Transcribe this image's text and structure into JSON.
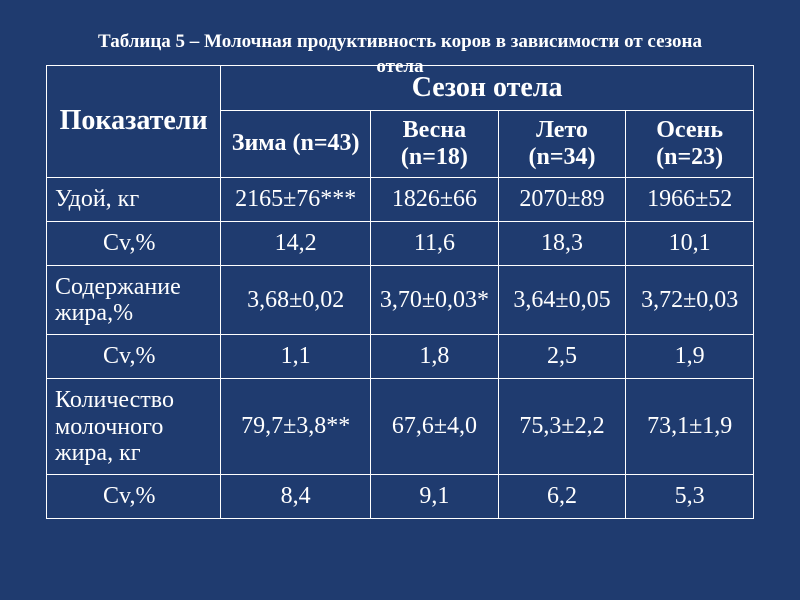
{
  "title": {
    "line1": "Таблица 5 – Молочная продуктивность коров в зависимости от сезона",
    "line2": "отела"
  },
  "table": {
    "row_header_label": "Показатели",
    "super_header": "Сезон отела",
    "seasons": [
      {
        "label": "Зима (n=43)"
      },
      {
        "label": "Весна (n=18)"
      },
      {
        "label": "Лето (n=34)"
      },
      {
        "label": "Осень (n=23)"
      }
    ],
    "rows": [
      {
        "label": "Удой, кг",
        "cells": [
          "2165±76***",
          "1826±66",
          "2070±89",
          "1966±52"
        ]
      },
      {
        "label": "Cv,%",
        "is_cv": true,
        "cells": [
          "14,2",
          "11,6",
          "18,3",
          "10,1"
        ]
      },
      {
        "label": "Содержание жира,%",
        "cells": [
          "3,68±0,02",
          "3,70±0,03*",
          "3,64±0,05",
          "3,72±0,03"
        ]
      },
      {
        "label": "Cv,%",
        "is_cv": true,
        "cells": [
          "1,1",
          "1,8",
          "2,5",
          "1,9"
        ]
      },
      {
        "label": "Количество молочного жира, кг",
        "cells": [
          "79,7±3,8**",
          "67,6±4,0",
          "75,3±2,2",
          "73,1±1,9"
        ]
      },
      {
        "label": "Cv,%",
        "is_cv": true,
        "cells": [
          "8,4",
          "9,1",
          "6,2",
          "5,3"
        ]
      }
    ]
  },
  "style": {
    "background_color": "#1f3b6f",
    "border_color": "#ffffff",
    "text_color": "#ffffff",
    "title_fontsize_pt": 14,
    "header_fontsize_pt": 21,
    "cell_fontsize_pt": 18
  }
}
